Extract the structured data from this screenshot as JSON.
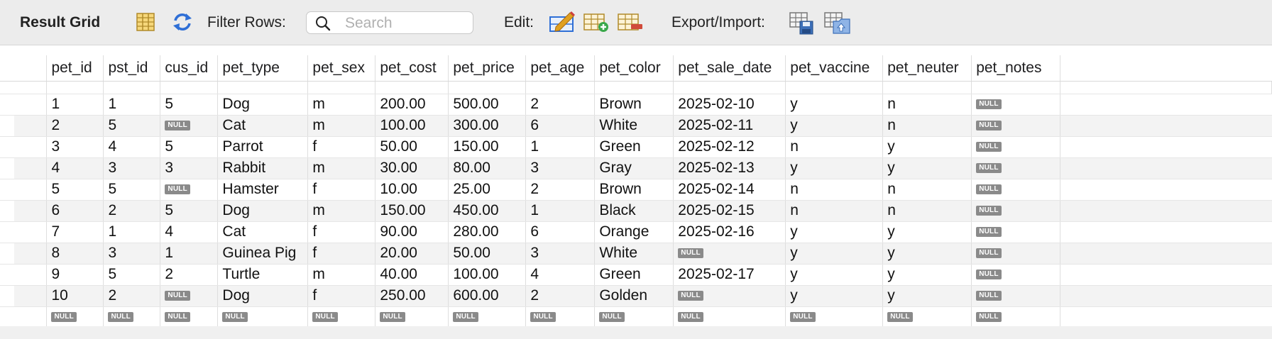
{
  "toolbar": {
    "title": "Result Grid",
    "filter_label": "Filter Rows:",
    "search_placeholder": "Search",
    "edit_label": "Edit:",
    "export_label": "Export/Import:"
  },
  "null_label": "NULL",
  "columns": [
    "pet_id",
    "pst_id",
    "cus_id",
    "pet_type",
    "pet_sex",
    "pet_cost",
    "pet_price",
    "pet_age",
    "pet_color",
    "pet_sale_date",
    "pet_vaccine",
    "pet_neuter",
    "pet_notes"
  ],
  "rows": [
    [
      "1",
      "1",
      "5",
      "Dog",
      "m",
      "200.00",
      "500.00",
      "2",
      "Brown",
      "2025-02-10",
      "y",
      "n",
      null
    ],
    [
      "2",
      "5",
      null,
      "Cat",
      "m",
      "100.00",
      "300.00",
      "6",
      "White",
      "2025-02-11",
      "y",
      "n",
      null
    ],
    [
      "3",
      "4",
      "5",
      "Parrot",
      "f",
      "50.00",
      "150.00",
      "1",
      "Green",
      "2025-02-12",
      "n",
      "y",
      null
    ],
    [
      "4",
      "3",
      "3",
      "Rabbit",
      "m",
      "30.00",
      "80.00",
      "3",
      "Gray",
      "2025-02-13",
      "y",
      "y",
      null
    ],
    [
      "5",
      "5",
      null,
      "Hamster",
      "f",
      "10.00",
      "25.00",
      "2",
      "Brown",
      "2025-02-14",
      "n",
      "n",
      null
    ],
    [
      "6",
      "2",
      "5",
      "Dog",
      "m",
      "150.00",
      "450.00",
      "1",
      "Black",
      "2025-02-15",
      "n",
      "n",
      null
    ],
    [
      "7",
      "1",
      "4",
      "Cat",
      "f",
      "90.00",
      "280.00",
      "6",
      "Orange",
      "2025-02-16",
      "y",
      "y",
      null
    ],
    [
      "8",
      "3",
      "1",
      "Guinea Pig",
      "f",
      "20.00",
      "50.00",
      "3",
      "White",
      null,
      "y",
      "y",
      null
    ],
    [
      "9",
      "5",
      "2",
      "Turtle",
      "m",
      "40.00",
      "100.00",
      "4",
      "Green",
      "2025-02-17",
      "y",
      "y",
      null
    ],
    [
      "10",
      "2",
      null,
      "Dog",
      "f",
      "250.00",
      "600.00",
      "2",
      "Golden",
      null,
      "y",
      "y",
      null
    ],
    [
      null,
      null,
      null,
      null,
      null,
      null,
      null,
      null,
      null,
      null,
      null,
      null,
      null
    ]
  ],
  "icons": {
    "toggle_grid": "grid-columns-icon",
    "refresh": "refresh-icon",
    "search": "search-icon",
    "edit_row": "edit-row-icon",
    "add_row": "add-row-icon",
    "delete_row": "delete-row-icon",
    "export": "export-icon",
    "import": "import-icon"
  },
  "colors": {
    "toolbar_bg": "#ececec",
    "null_badge": "#8a8a8a",
    "stripe": "#f3f3f3",
    "accent_blue": "#2f6fd6",
    "edit_orange": "#e0a020"
  }
}
